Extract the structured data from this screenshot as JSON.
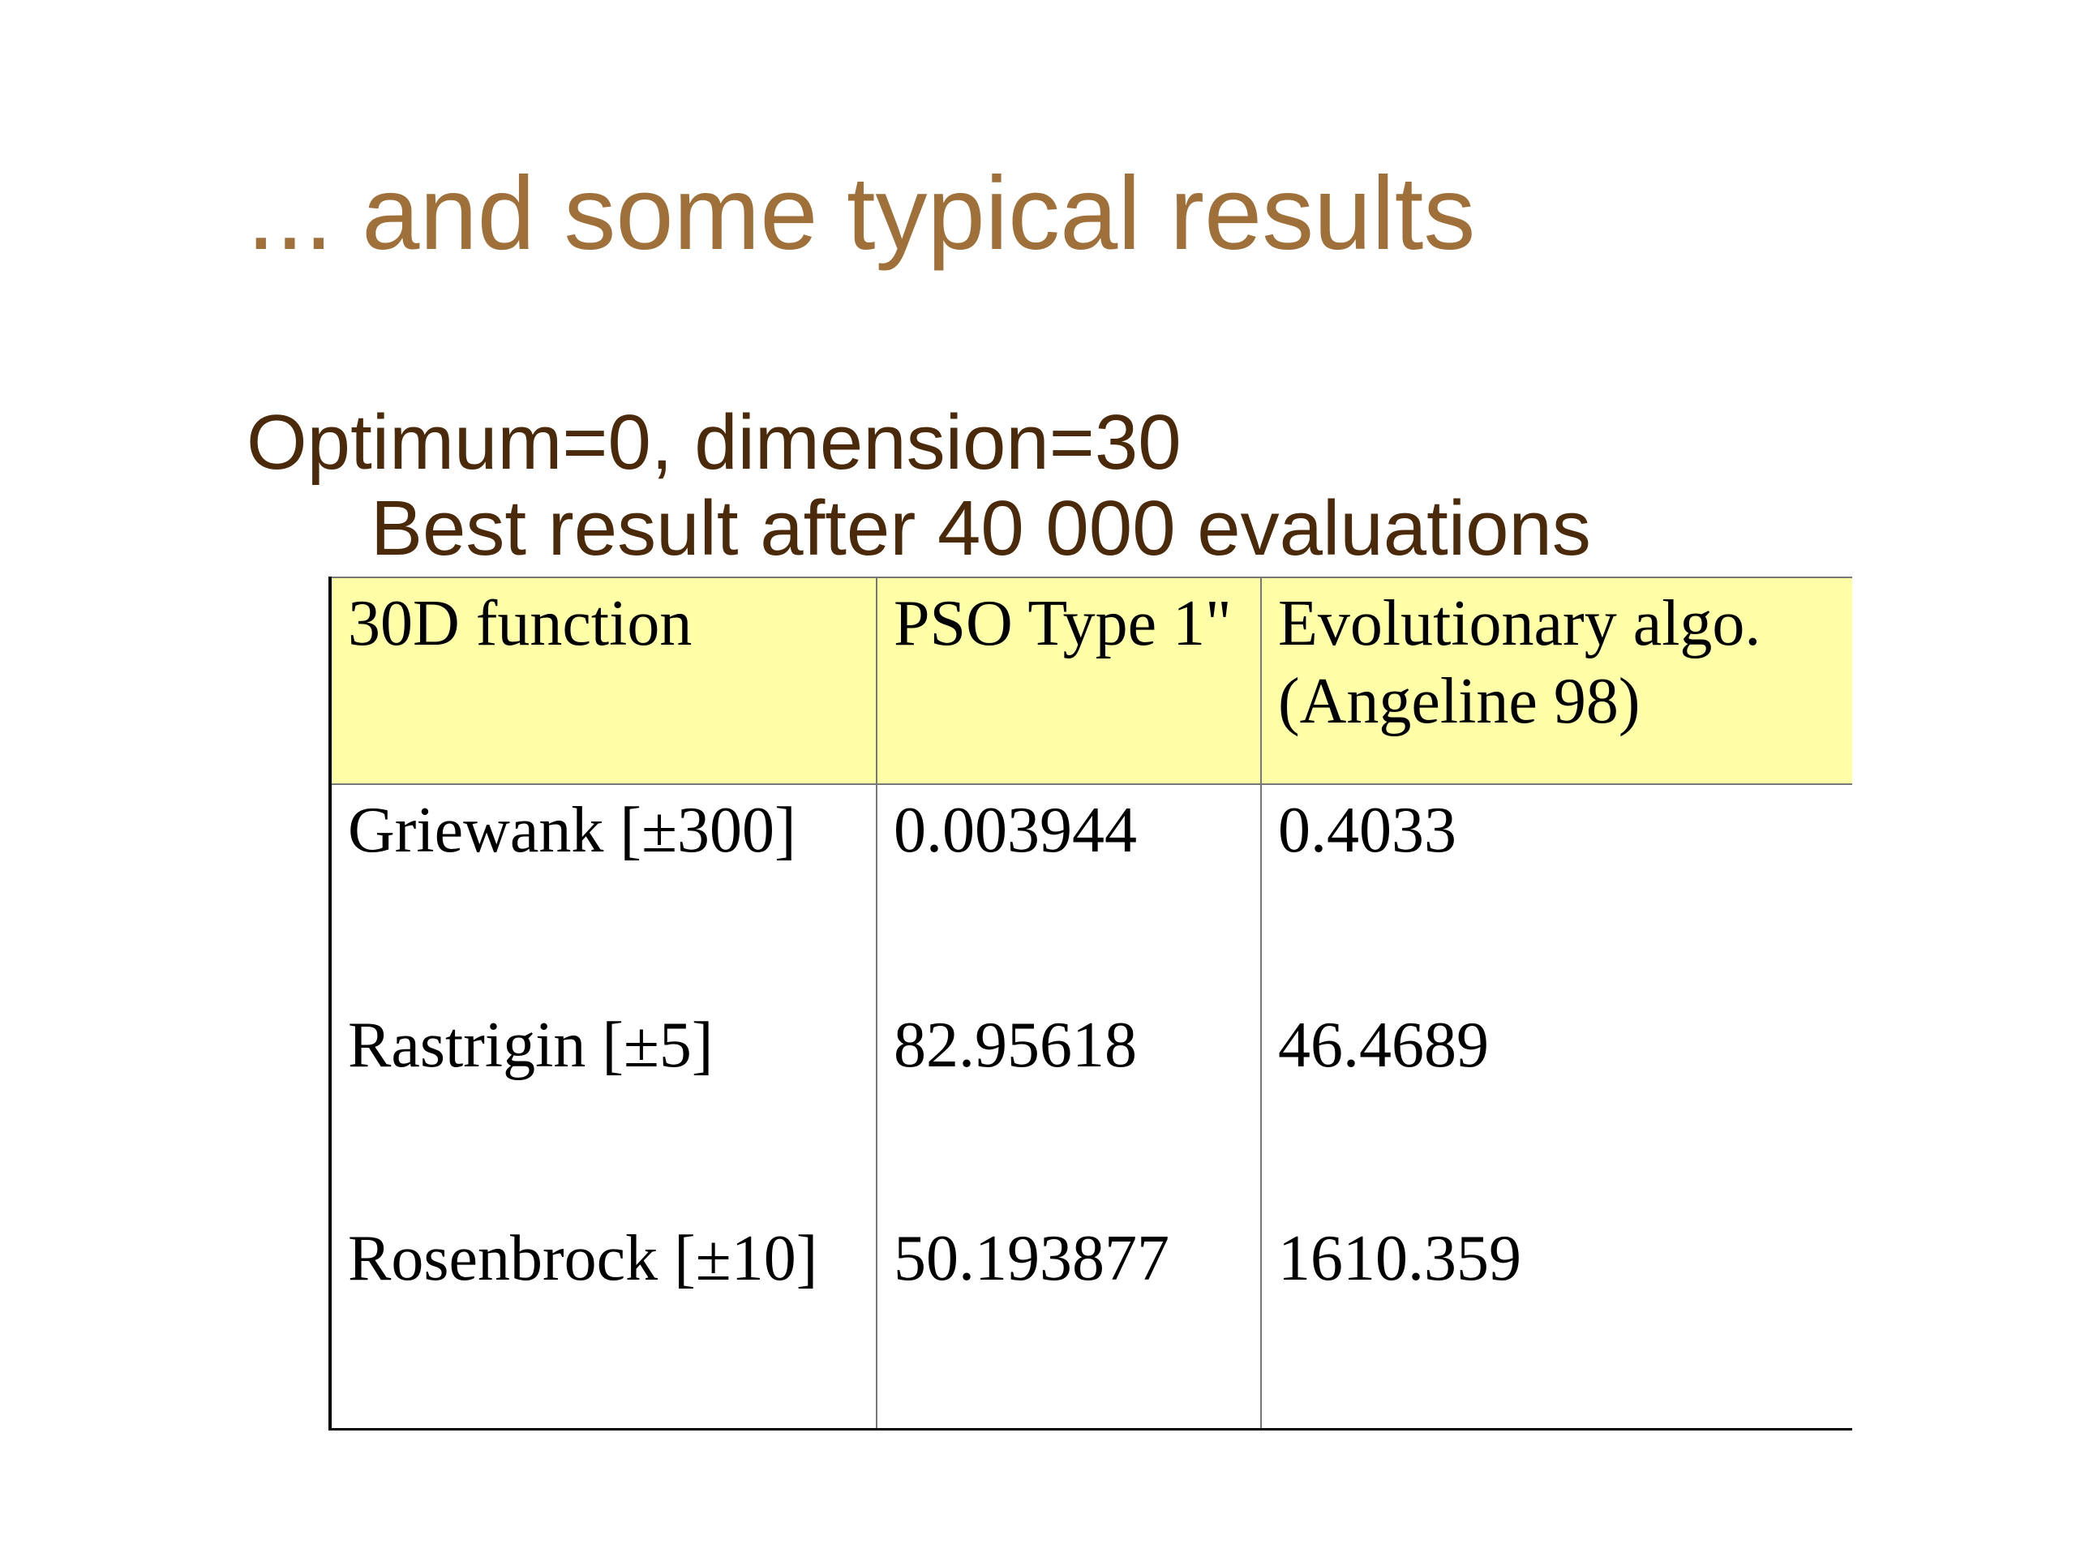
{
  "header": {
    "title": "... and some typical results"
  },
  "subtitle": [
    "Optimum=0, dimension=30",
    "Best result after 40 000 evaluations"
  ],
  "table": {
    "columns": [
      "30D function",
      "PSO Type 1\"",
      "Evolutionary algo.(Angeline 98)"
    ],
    "rows": [
      [
        "Griewank [±300]",
        "0.003944",
        "0.4033"
      ],
      [
        "Rastrigin [±5]",
        "82.95618",
        "46.4689"
      ],
      [
        "Rosenbrock [±10]",
        "50.193877",
        "1610.359"
      ]
    ]
  }
}
